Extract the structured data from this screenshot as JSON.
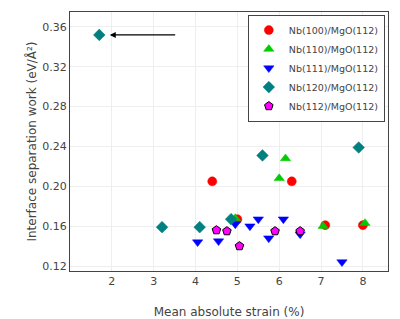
{
  "chart_data": {
    "type": "scatter",
    "x_label": "Mean absolute strain (%)",
    "y_label": "Interface separation work (eV/Å²)",
    "xlim": [
      1.0,
      8.6
    ],
    "ylim": [
      0.115,
      0.375
    ],
    "xticks": [
      2,
      3,
      4,
      5,
      6,
      7,
      8
    ],
    "yticks": [
      0.12,
      0.16,
      {
        "value": 0.2,
        "label": "0.20"
      },
      0.24,
      0.28,
      0.32,
      0.36
    ],
    "legend": "upper right",
    "series": [
      {
        "name": "Nb(100)/MgO(112)",
        "color": "#FF0000",
        "marker": "circle",
        "x": [
          4.4,
          5.0,
          6.3,
          7.1,
          8.0
        ],
        "values": [
          0.205,
          0.167,
          0.205,
          0.161,
          0.161
        ]
      },
      {
        "name": "Nb(110)/MgO(112)",
        "color": "#00CC00",
        "marker": "triangle-up",
        "x": [
          4.95,
          6.0,
          6.15,
          7.05,
          8.05
        ],
        "values": [
          0.168,
          0.208,
          0.228,
          0.16,
          0.163
        ]
      },
      {
        "name": "Nb(111)/MgO(112)",
        "color": "#0000FF",
        "marker": "triangle-down",
        "x": [
          4.05,
          4.55,
          4.95,
          5.3,
          5.5,
          5.75,
          6.1,
          6.5,
          7.5
        ],
        "values": [
          0.144,
          0.145,
          0.162,
          0.16,
          0.167,
          0.148,
          0.167,
          0.152,
          0.124
        ]
      },
      {
        "name": "Nb(120)/MgO(112)",
        "color": "#008080",
        "marker": "diamond",
        "x": [
          1.7,
          3.2,
          4.1,
          4.85,
          5.6,
          7.9
        ],
        "values": [
          0.352,
          0.159,
          0.159,
          0.167,
          0.231,
          0.239
        ]
      },
      {
        "name": "Nb(112)/MgO(112)",
        "color": "#FF00FF",
        "marker": "pentagon",
        "x": [
          4.5,
          4.75,
          5.05,
          5.9,
          6.5
        ],
        "values": [
          0.156,
          0.155,
          0.14,
          0.155,
          0.155
        ]
      }
    ],
    "annotations": [
      {
        "x": 1.95,
        "y": 0.352,
        "from_x": 3.55,
        "from_y": 0.352
      }
    ]
  }
}
